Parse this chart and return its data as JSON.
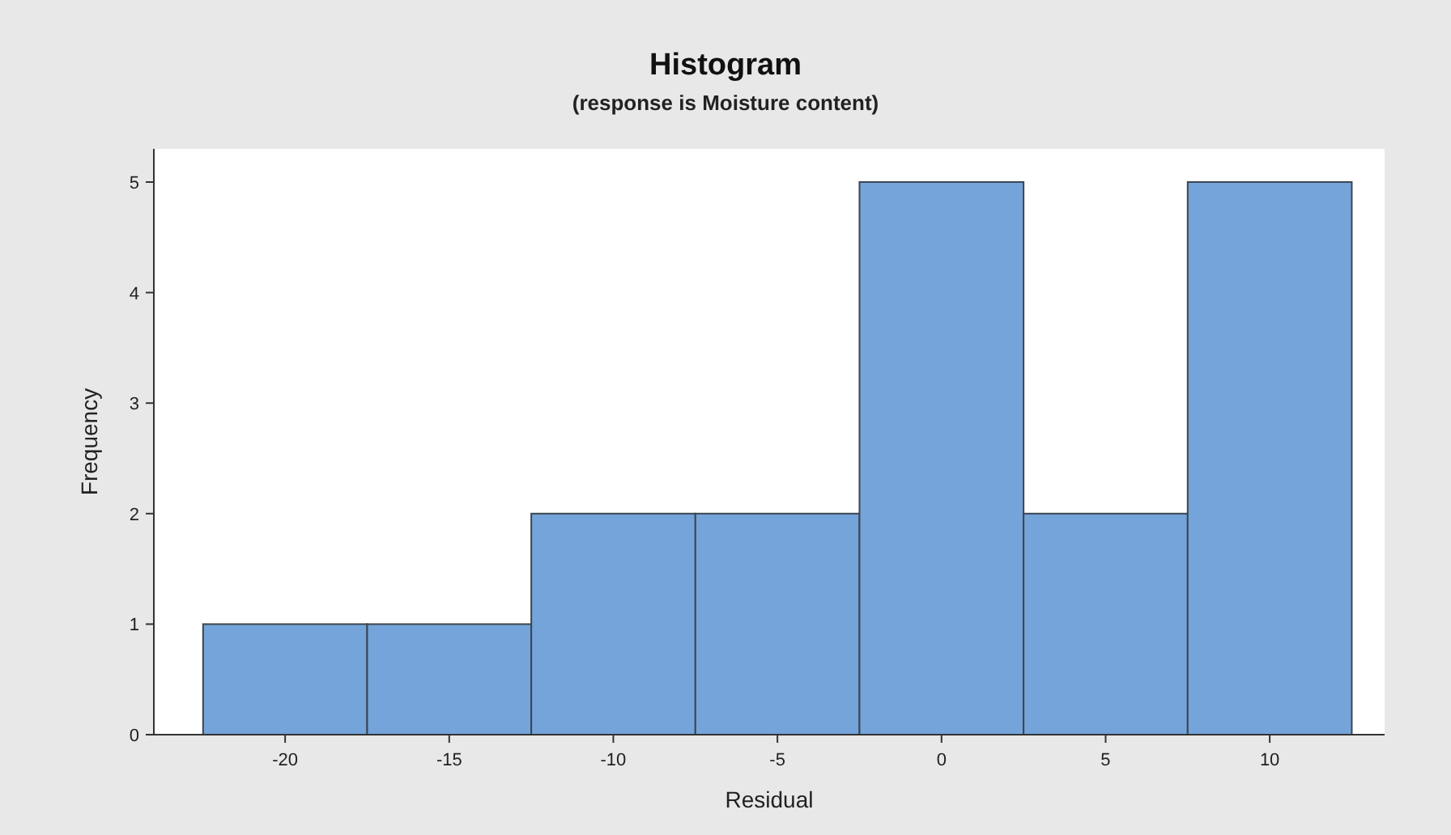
{
  "chart_data": {
    "type": "histogram",
    "title": "Histogram",
    "subtitle": "(response is Moisture content)",
    "xlabel": "Residual",
    "ylabel": "Frequency",
    "bins": [
      -22.5,
      -17.5,
      -12.5,
      -7.5,
      -2.5,
      2.5,
      7.5,
      12.5
    ],
    "values": [
      1,
      1,
      2,
      2,
      5,
      2,
      5
    ],
    "color": "#74a4da",
    "xlim": [
      -24,
      13.5
    ],
    "xticks": [
      -20,
      -15,
      -10,
      -5,
      0,
      5,
      10
    ],
    "ylim": [
      0,
      5.3
    ],
    "yticks": [
      0,
      1,
      2,
      3,
      4,
      5
    ],
    "grid": false
  }
}
